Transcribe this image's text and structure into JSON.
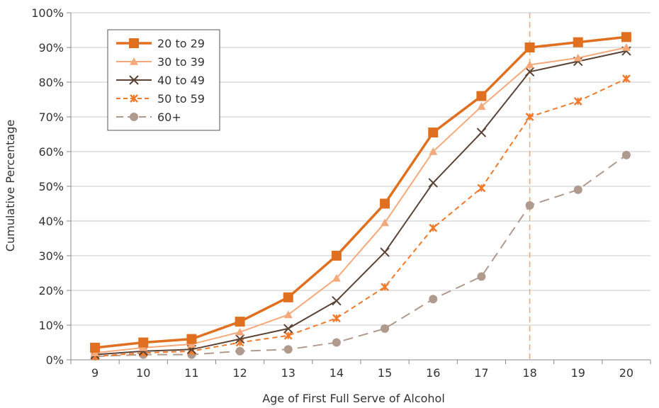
{
  "chart_data": {
    "type": "line",
    "title": "",
    "xlabel": "Age of First Full Serve of Alcohol",
    "ylabel": "Cumulative Percentage",
    "x": [
      9,
      10,
      11,
      12,
      13,
      14,
      15,
      16,
      17,
      18,
      19,
      20
    ],
    "ylim": [
      0,
      100
    ],
    "yticks": [
      "0%",
      "10%",
      "20%",
      "30%",
      "40%",
      "50%",
      "60%",
      "70%",
      "80%",
      "90%",
      "100%"
    ],
    "grid": "horizontal",
    "reference_line_x": 18,
    "legend_position": "top-left",
    "series": [
      {
        "name": "20 to 29",
        "color": "#e07020",
        "marker": "square",
        "dash": "solid",
        "values": [
          3.5,
          5,
          6,
          11,
          18,
          30,
          45,
          65.5,
          76,
          90,
          91.5,
          93
        ]
      },
      {
        "name": "30 to 39",
        "color": "#f5a97a",
        "marker": "triangle",
        "dash": "solid",
        "values": [
          2,
          3.5,
          4.5,
          8,
          13,
          23.5,
          39.5,
          60,
          73,
          85,
          87,
          90
        ]
      },
      {
        "name": "40 to 49",
        "color": "#5b4336",
        "marker": "x",
        "dash": "solid",
        "values": [
          1.5,
          2.5,
          3,
          6,
          9,
          17,
          31,
          51,
          65.5,
          83,
          86,
          89
        ]
      },
      {
        "name": "50 to 59",
        "color": "#f07a2a",
        "marker": "star",
        "dash": "dashed",
        "values": [
          1,
          2,
          2.5,
          5,
          7,
          12,
          21,
          38,
          49.5,
          70,
          74.5,
          81
        ]
      },
      {
        "name": "60+",
        "color": "#b09a8e",
        "marker": "circle",
        "dash": "longdash",
        "values": [
          1,
          1.5,
          1.5,
          2.5,
          3,
          5,
          9,
          17.5,
          24,
          44.5,
          49,
          59
        ]
      }
    ]
  }
}
